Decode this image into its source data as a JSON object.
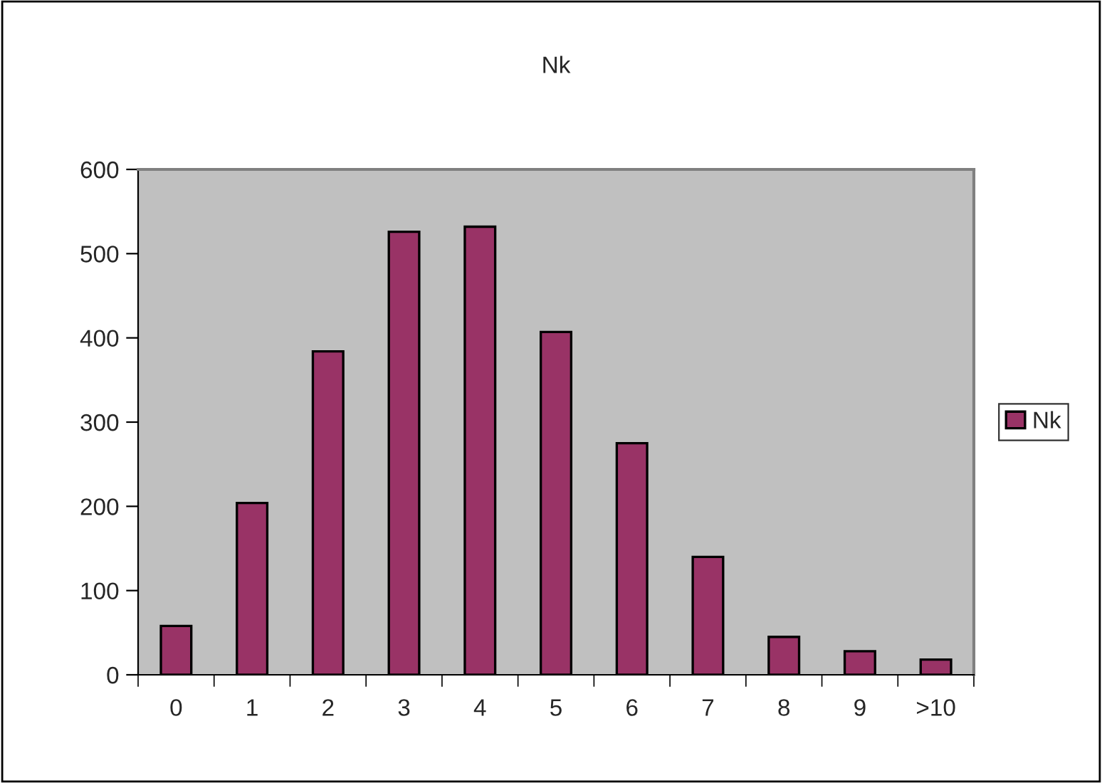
{
  "chart_data": {
    "type": "bar",
    "title": "Nk",
    "categories": [
      "0",
      "1",
      "2",
      "3",
      "4",
      "5",
      "6",
      "7",
      "8",
      "9",
      ">10"
    ],
    "series": [
      {
        "name": "Nk",
        "color": "#993366",
        "values": [
          58,
          204,
          384,
          526,
          532,
          407,
          275,
          140,
          45,
          28,
          18
        ]
      }
    ],
    "ylim": [
      0,
      600
    ],
    "yticks": [
      0,
      100,
      200,
      300,
      400,
      500,
      600
    ],
    "grid": false,
    "legend": "right"
  }
}
